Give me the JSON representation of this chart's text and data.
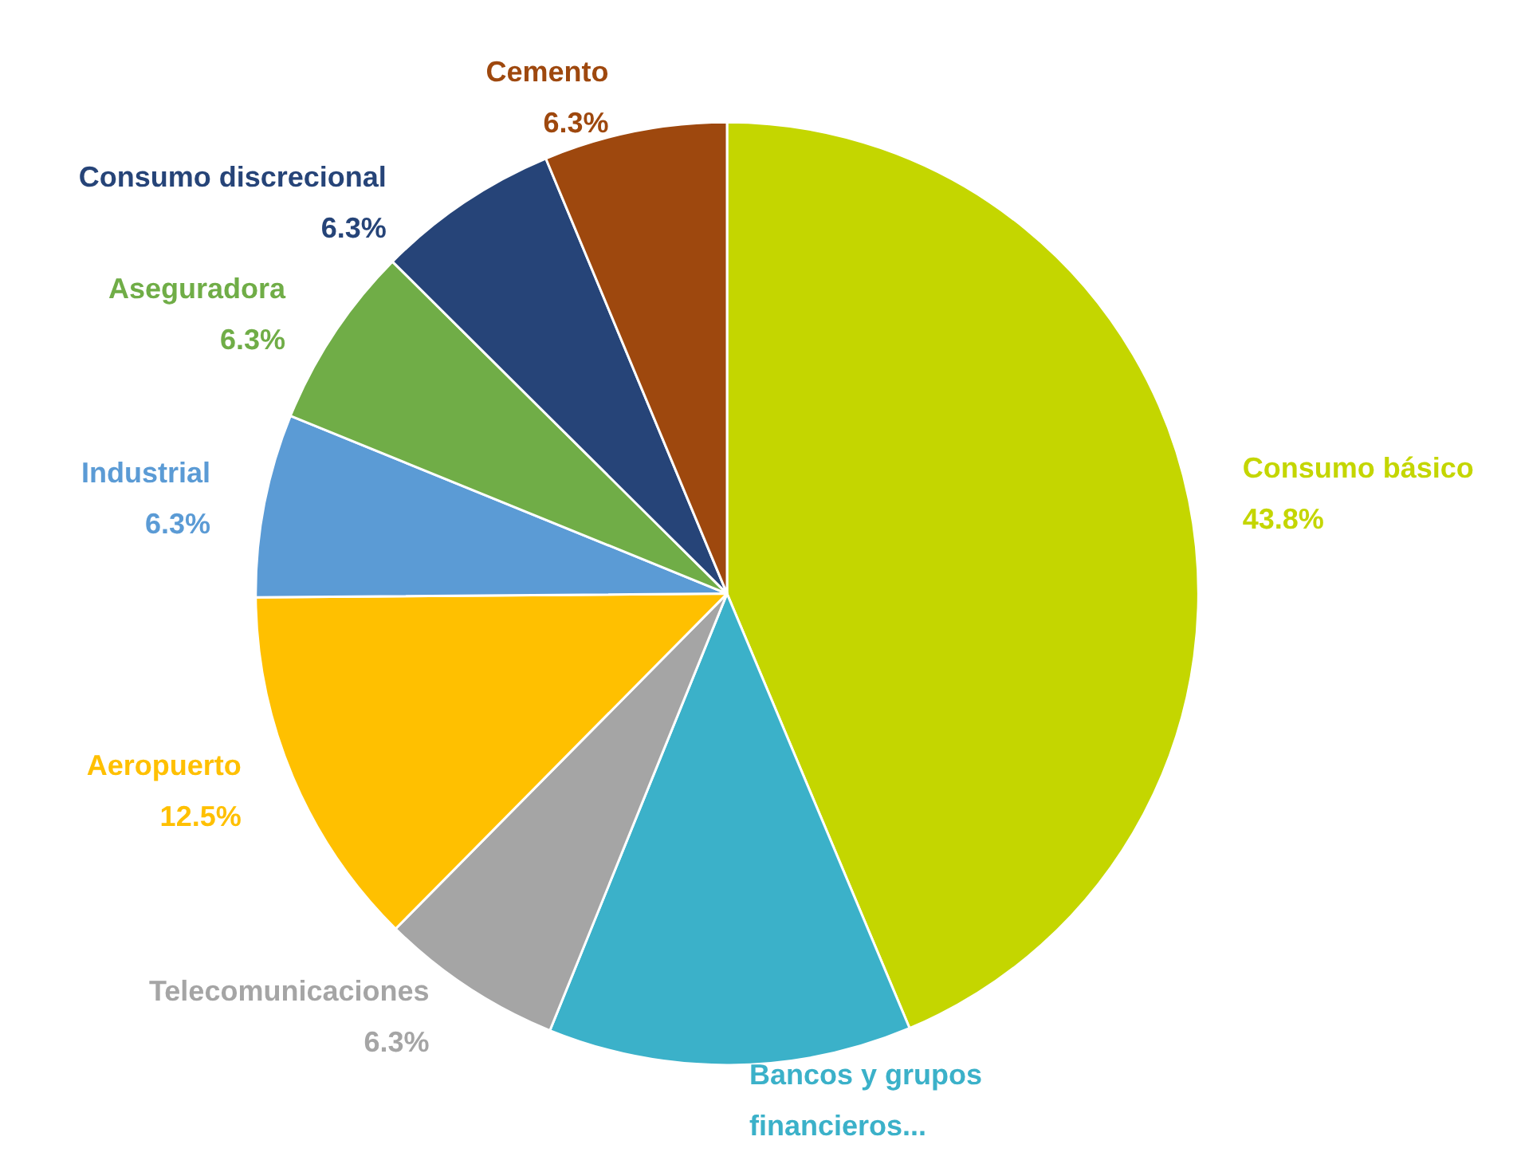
{
  "chart_data": {
    "type": "pie",
    "categories": [
      "Consumo básico",
      "Bancos y grupos financieros...",
      "Telecomunicaciones",
      "Aeropuerto",
      "Industrial",
      "Aseguradora",
      "Consumo discrecional",
      "Cemento"
    ],
    "values": [
      43.8,
      12.5,
      6.3,
      12.5,
      6.3,
      6.3,
      6.3,
      6.3
    ],
    "value_labels": [
      "43.8%",
      null,
      "6.3%",
      "12.5%",
      "6.3%",
      "6.3%",
      "6.3%",
      "6.3%"
    ],
    "colors": [
      "#c4d600",
      "#3bb1c9",
      "#a5a5a5",
      "#ffc000",
      "#5b9bd5",
      "#70ad47",
      "#264478",
      "#9e480e"
    ],
    "legend": false
  }
}
